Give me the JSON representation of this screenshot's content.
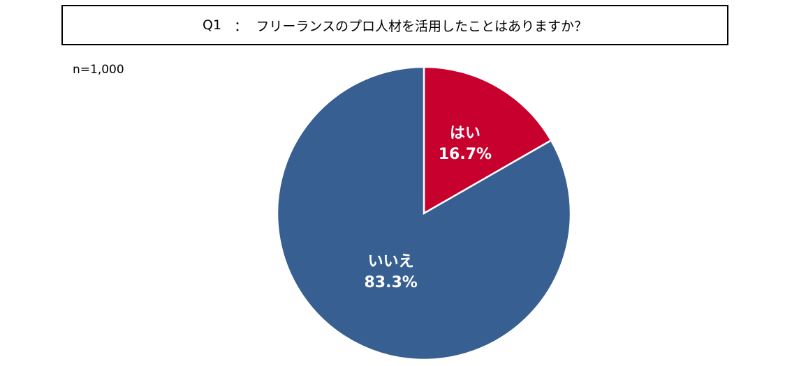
{
  "header": {
    "question_no": "Q1",
    "separator": "：",
    "question_text": "フリーランスのプロ人材を活用したことはありますか？"
  },
  "sample_size": "n=1,000",
  "colors": {
    "yes": "#C8002D",
    "no": "#375F91",
    "border": "#FFFFFF"
  },
  "chart_data": {
    "type": "pie",
    "title": "Q1 ： フリーランスのプロ人材を活用したことはありますか？",
    "start_angle_deg": 0,
    "direction": "clockwise",
    "slices": [
      {
        "label": "はい",
        "value": 16.7,
        "value_label": "16.7%",
        "color": "#C8002D"
      },
      {
        "label": "いいえ",
        "value": 83.3,
        "value_label": "83.3%",
        "color": "#375F91"
      }
    ]
  }
}
